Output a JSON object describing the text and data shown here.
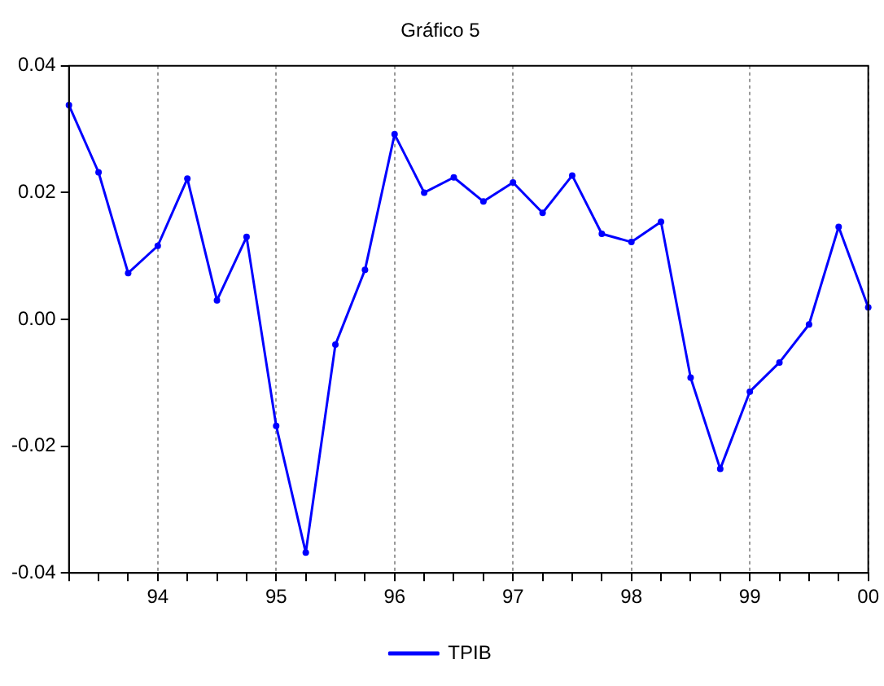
{
  "chart_data": {
    "type": "line",
    "title": "Gráfico 5",
    "categories": [
      null,
      null,
      null,
      "94",
      null,
      null,
      null,
      "95",
      null,
      null,
      null,
      "96",
      null,
      null,
      null,
      "97",
      null,
      null,
      null,
      "98",
      null,
      null,
      null,
      "99",
      null,
      null,
      null,
      "00"
    ],
    "series": [
      {
        "name": "TPIB",
        "color": "#0000ff",
        "values": [
          0.0338,
          0.0232,
          0.0073,
          0.0116,
          0.0222,
          0.003,
          0.013,
          -0.0168,
          -0.0368,
          -0.004,
          0.0078,
          0.0292,
          0.02,
          0.0224,
          0.0186,
          0.0216,
          0.0168,
          0.0227,
          0.0135,
          0.0122,
          0.0154,
          -0.0092,
          -0.0236,
          -0.0114,
          -0.0068,
          -0.0008,
          0.0146,
          0.0019
        ]
      }
    ],
    "ylim": [
      -0.04,
      0.04
    ],
    "yticks": [
      {
        "value": -0.04,
        "label": "-0.04"
      },
      {
        "value": -0.02,
        "label": "-0.02"
      },
      {
        "value": 0,
        "label": "0.00"
      },
      {
        "value": 0.02,
        "label": "0.02"
      },
      {
        "value": 0.04,
        "label": "0.04"
      }
    ],
    "grid": "x",
    "legend": "bottom",
    "marker": "circle",
    "line_style": "solid"
  }
}
